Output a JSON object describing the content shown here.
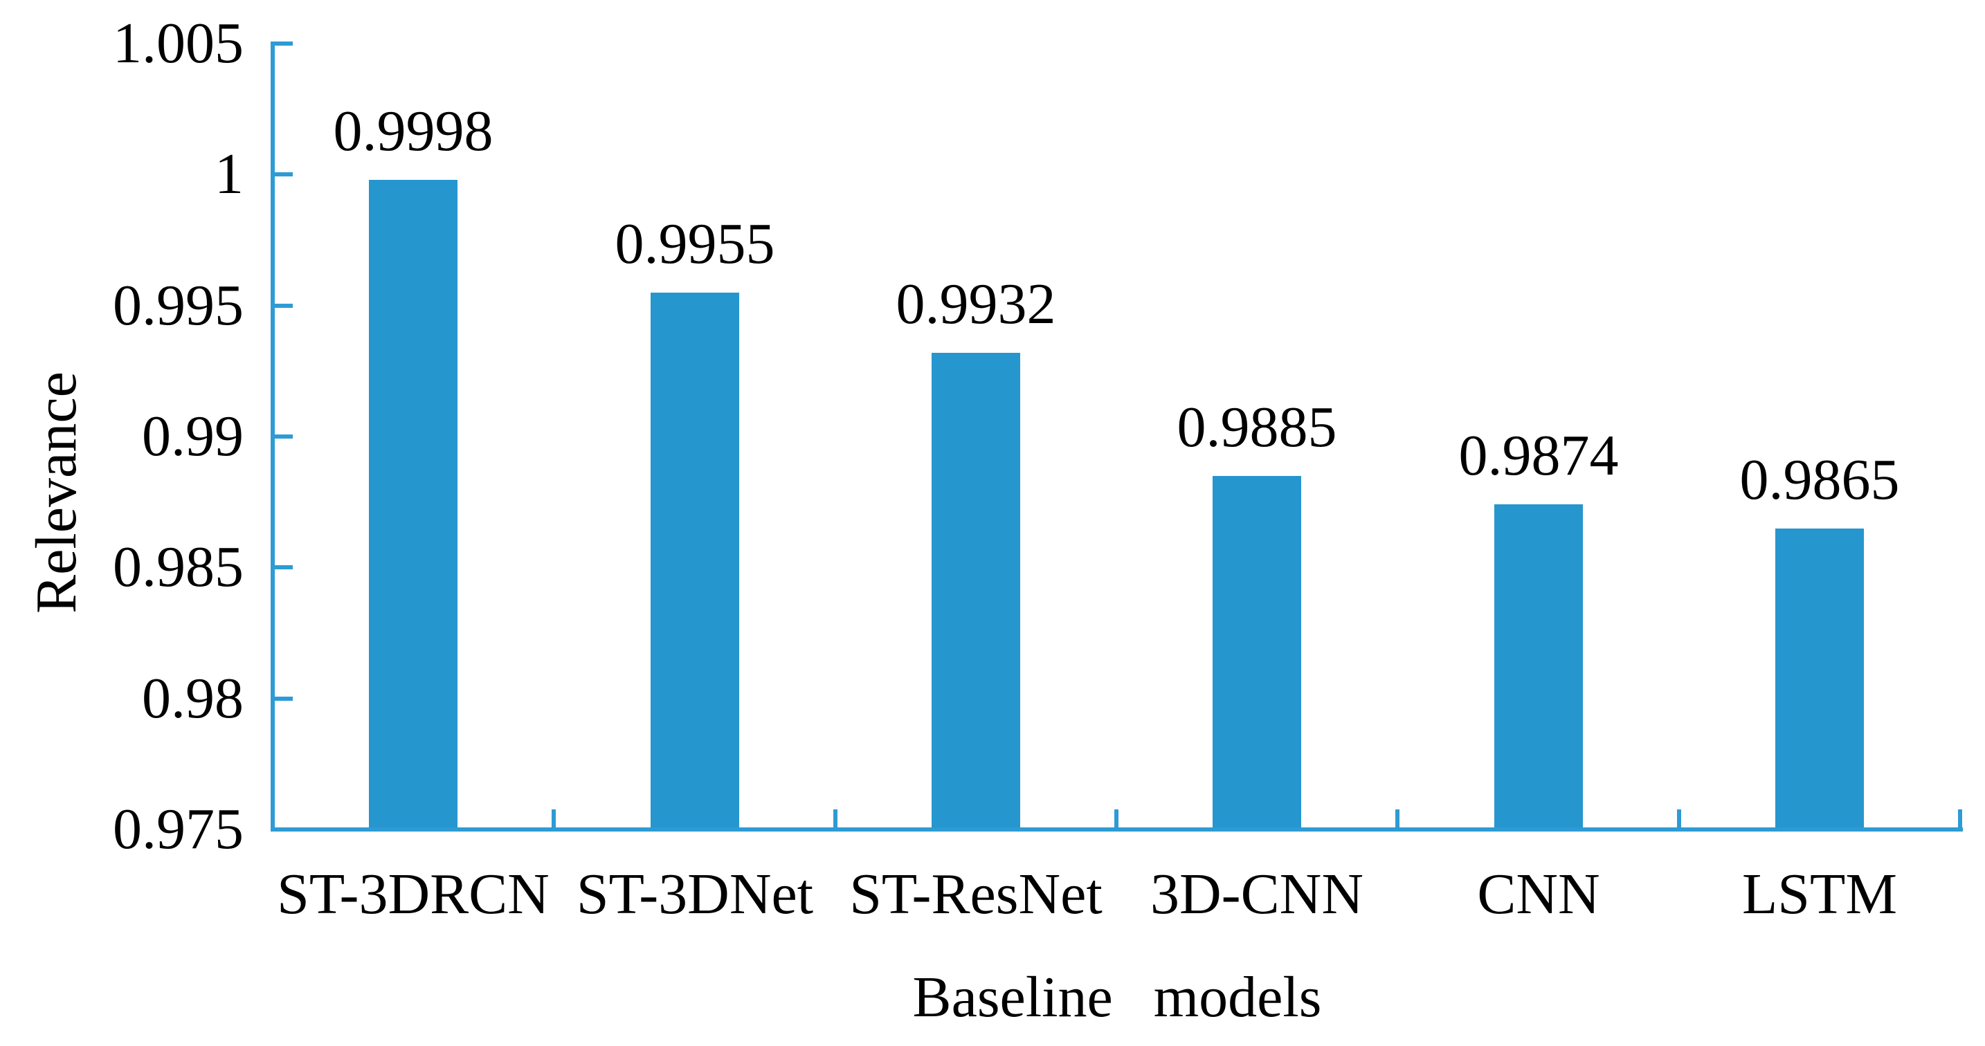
{
  "figure": {
    "background": "#ffffff"
  },
  "chart_data": {
    "type": "bar",
    "title": "",
    "categories": [
      "ST-3DRCN",
      "ST-3DNet",
      "ST-ResNet",
      "3D-CNN",
      "CNN",
      "LSTM"
    ],
    "values": [
      0.9998,
      0.9955,
      0.9932,
      0.9885,
      0.9874,
      0.9865
    ],
    "value_labels": [
      "0.9998",
      "0.9955",
      "0.9932",
      "0.9885",
      "0.9874",
      "0.9865"
    ],
    "xlabel": "Baseline models",
    "ylabel": "Relevance",
    "ylim": [
      0.975,
      1.005
    ],
    "ytick_step": 0.005,
    "yticks": [
      0.975,
      0.98,
      0.985,
      0.99,
      0.995,
      1,
      1.005
    ],
    "ytick_labels": [
      "0.975",
      "0.98",
      "0.985",
      "0.99",
      "0.995",
      "1",
      "1.005"
    ],
    "grid": false,
    "legend": null,
    "bar_color": "#2596CE",
    "axis_color": "#2E9BD4",
    "text_color": "#000000"
  }
}
